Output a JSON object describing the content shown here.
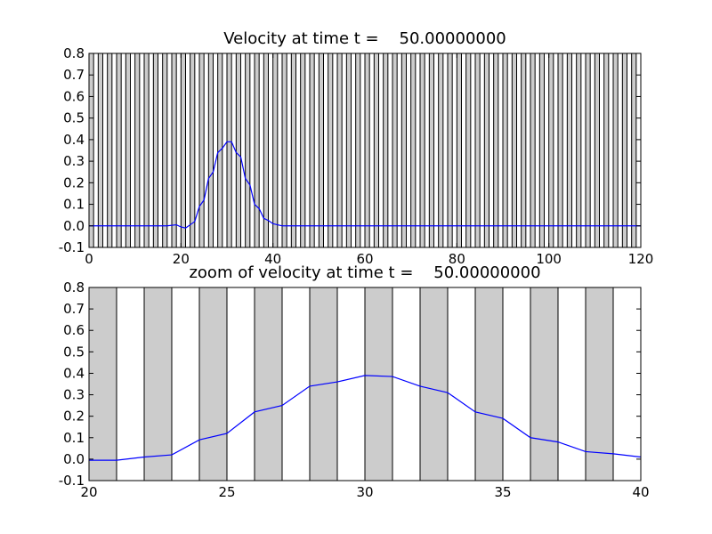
{
  "chart_data": [
    {
      "type": "line",
      "title": "Velocity at time t =    50.00000000",
      "xlabel": "",
      "ylabel": "",
      "xlim": [
        0,
        120
      ],
      "ylim": [
        -0.1,
        0.8
      ],
      "xticks": [
        0,
        20,
        40,
        60,
        80,
        100,
        120
      ],
      "yticks": [
        -0.1,
        0.0,
        0.1,
        0.2,
        0.3,
        0.4,
        0.5,
        0.6,
        0.7,
        0.8
      ],
      "background_bands": {
        "width": 1,
        "period": 2,
        "start": 0,
        "end": 120,
        "color": "#cccccc",
        "edge_color": "#000000"
      },
      "line_color": "#0000ff",
      "grid": false,
      "series": [
        {
          "x": [
            0,
            5,
            10,
            15,
            17,
            19,
            20,
            21,
            22,
            23,
            24,
            25,
            26,
            27,
            28,
            29,
            30,
            31,
            32,
            33,
            34,
            35,
            36,
            37,
            38,
            39,
            40,
            41,
            42,
            45,
            50,
            60,
            80,
            100,
            120
          ],
          "values": [
            0.0,
            0.0,
            0.0,
            0.0,
            0.0,
            0.005,
            -0.005,
            -0.01,
            0.005,
            0.02,
            0.09,
            0.12,
            0.22,
            0.25,
            0.34,
            0.36,
            0.39,
            0.39,
            0.34,
            0.32,
            0.22,
            0.19,
            0.1,
            0.08,
            0.035,
            0.025,
            0.01,
            0.005,
            0.0,
            0.0,
            0.0,
            0.0,
            0.0,
            0.0,
            0.0
          ]
        }
      ]
    },
    {
      "type": "line",
      "title": "zoom of velocity at time t =    50.00000000",
      "xlabel": "",
      "ylabel": "",
      "xlim": [
        20,
        40
      ],
      "ylim": [
        -0.1,
        0.8
      ],
      "xticks": [
        20,
        25,
        30,
        35,
        40
      ],
      "yticks": [
        -0.1,
        0.0,
        0.1,
        0.2,
        0.3,
        0.4,
        0.5,
        0.6,
        0.7,
        0.8
      ],
      "background_bands": {
        "width": 1,
        "period": 2,
        "start": 20,
        "end": 40,
        "color": "#cccccc",
        "edge_color": "#000000"
      },
      "line_color": "#0000ff",
      "grid": false,
      "series": [
        {
          "x": [
            20,
            21,
            22,
            23,
            24,
            25,
            26,
            27,
            28,
            29,
            30,
            31,
            32,
            33,
            34,
            35,
            36,
            37,
            38,
            39,
            40
          ],
          "values": [
            -0.005,
            -0.005,
            0.01,
            0.02,
            0.09,
            0.12,
            0.22,
            0.25,
            0.34,
            0.36,
            0.39,
            0.385,
            0.34,
            0.31,
            0.22,
            0.19,
            0.1,
            0.08,
            0.035,
            0.025,
            0.01
          ]
        }
      ]
    }
  ]
}
